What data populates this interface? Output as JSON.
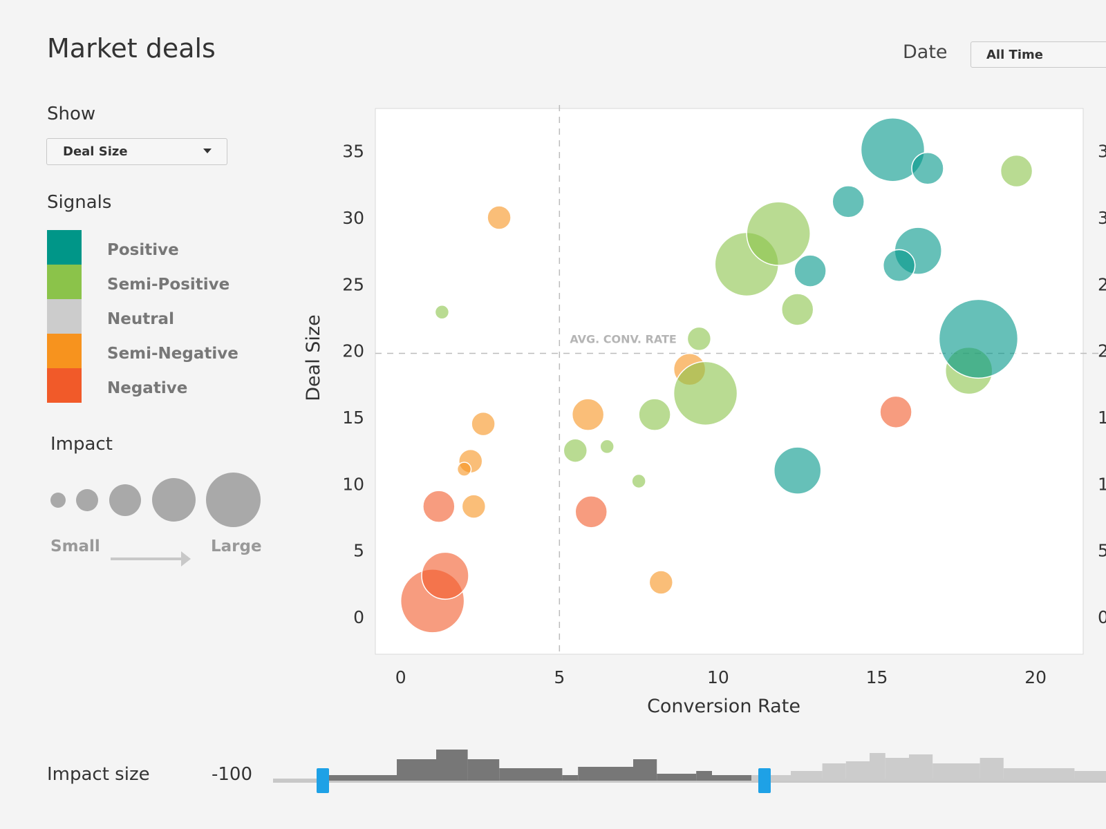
{
  "header": {
    "title": "Market deals",
    "date_label": "Date",
    "date_value": "All Time"
  },
  "sidebar": {
    "show_label": "Show",
    "show_value": "Deal Size",
    "signals_label": "Signals",
    "signals": [
      {
        "label": "Positive",
        "color": "#009688"
      },
      {
        "label": "Semi-Positive",
        "color": "#8bc34a"
      },
      {
        "label": "Neutral",
        "color": "#cccccc"
      },
      {
        "label": "Semi-Negative",
        "color": "#f7931e"
      },
      {
        "label": "Negative",
        "color": "#f15a29"
      }
    ],
    "impact_label": "Impact",
    "impact_small": "Small",
    "impact_large": "Large"
  },
  "footer": {
    "impact_size_label": "Impact size",
    "impact_min": "-100",
    "range_selected": [
      0.06,
      0.59
    ]
  },
  "chart_data": {
    "type": "scatter",
    "xlabel": "Conversion Rate",
    "ylabel": "Deal Size",
    "xlim": [
      -0.8,
      21.5
    ],
    "ylim": [
      -2.8,
      38.2
    ],
    "xticks": [
      0,
      5,
      10,
      15,
      20
    ],
    "yticks": [
      0,
      5,
      10,
      15,
      20,
      25,
      30,
      35
    ],
    "grid": false,
    "reference_lines": {
      "x": 5,
      "y": 19.8
    },
    "annotation": "AVG. CONV. RATE",
    "points": [
      {
        "x": 1.0,
        "y": 1.2,
        "size": 4,
        "signal": "Negative"
      },
      {
        "x": 1.4,
        "y": 3.1,
        "size": 3,
        "signal": "Negative"
      },
      {
        "x": 1.2,
        "y": 8.3,
        "size": 2,
        "signal": "Negative"
      },
      {
        "x": 6.0,
        "y": 7.9,
        "size": 2,
        "signal": "Negative"
      },
      {
        "x": 15.6,
        "y": 15.4,
        "size": 2,
        "signal": "Negative"
      },
      {
        "x": 3.1,
        "y": 30.0,
        "size": 1,
        "signal": "Semi-Negative"
      },
      {
        "x": 2.6,
        "y": 14.5,
        "size": 1,
        "signal": "Semi-Negative"
      },
      {
        "x": 2.2,
        "y": 11.7,
        "size": 1,
        "signal": "Semi-Negative"
      },
      {
        "x": 2.0,
        "y": 11.1,
        "size": 0,
        "signal": "Semi-Negative"
      },
      {
        "x": 2.3,
        "y": 8.3,
        "size": 1,
        "signal": "Semi-Negative"
      },
      {
        "x": 5.9,
        "y": 15.2,
        "size": 2,
        "signal": "Semi-Negative"
      },
      {
        "x": 9.1,
        "y": 18.6,
        "size": 2,
        "signal": "Semi-Negative"
      },
      {
        "x": 8.2,
        "y": 2.6,
        "size": 1,
        "signal": "Semi-Negative"
      },
      {
        "x": 1.3,
        "y": 22.9,
        "size": 0,
        "signal": "Semi-Positive"
      },
      {
        "x": 5.5,
        "y": 12.5,
        "size": 1,
        "signal": "Semi-Positive"
      },
      {
        "x": 6.5,
        "y": 12.8,
        "size": 0,
        "signal": "Semi-Positive"
      },
      {
        "x": 7.5,
        "y": 10.2,
        "size": 0,
        "signal": "Semi-Positive"
      },
      {
        "x": 8.0,
        "y": 15.2,
        "size": 2,
        "signal": "Semi-Positive"
      },
      {
        "x": 9.4,
        "y": 20.9,
        "size": 1,
        "signal": "Semi-Positive"
      },
      {
        "x": 9.6,
        "y": 16.8,
        "size": 4,
        "signal": "Semi-Positive"
      },
      {
        "x": 10.9,
        "y": 26.5,
        "size": 4,
        "signal": "Semi-Positive"
      },
      {
        "x": 11.9,
        "y": 28.8,
        "size": 4,
        "signal": "Semi-Positive"
      },
      {
        "x": 12.5,
        "y": 23.1,
        "size": 2,
        "signal": "Semi-Positive"
      },
      {
        "x": 17.9,
        "y": 18.5,
        "size": 3,
        "signal": "Semi-Positive"
      },
      {
        "x": 19.4,
        "y": 33.5,
        "size": 2,
        "signal": "Semi-Positive"
      },
      {
        "x": 12.9,
        "y": 26.0,
        "size": 2,
        "signal": "Positive"
      },
      {
        "x": 12.5,
        "y": 11.0,
        "size": 3,
        "signal": "Positive"
      },
      {
        "x": 14.1,
        "y": 31.2,
        "size": 2,
        "signal": "Positive"
      },
      {
        "x": 15.5,
        "y": 35.1,
        "size": 4,
        "signal": "Positive"
      },
      {
        "x": 16.6,
        "y": 33.7,
        "size": 2,
        "signal": "Positive"
      },
      {
        "x": 16.3,
        "y": 27.5,
        "size": 3,
        "signal": "Positive"
      },
      {
        "x": 15.7,
        "y": 26.4,
        "size": 2,
        "signal": "Positive"
      },
      {
        "x": 18.2,
        "y": 20.9,
        "size": 5,
        "signal": "Positive"
      }
    ]
  }
}
